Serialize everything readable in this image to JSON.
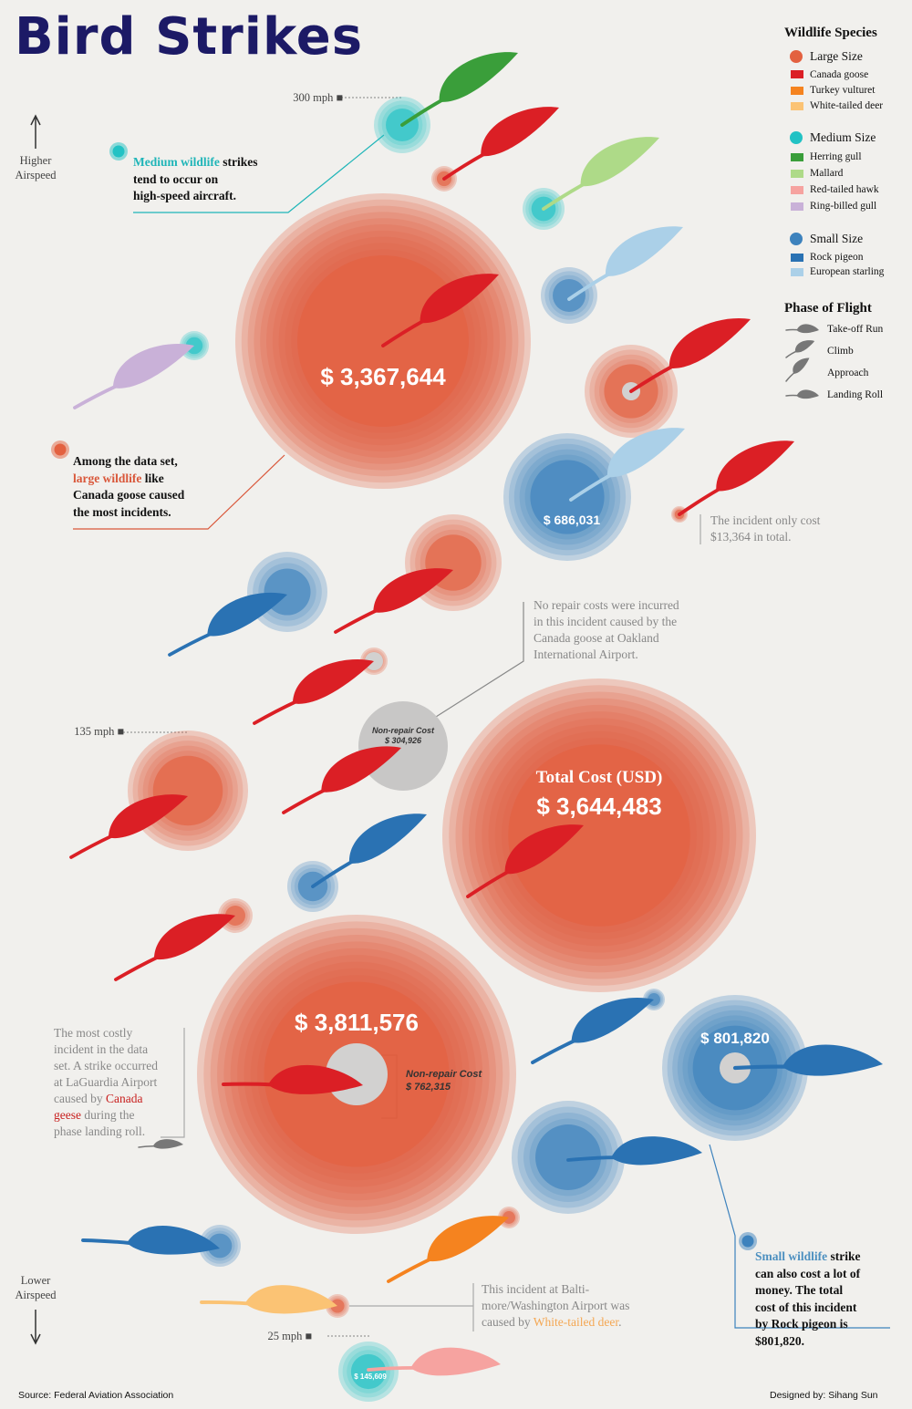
{
  "title": "Bird Strikes",
  "colors": {
    "background": "#f1f0ed",
    "title": "#1c1a66",
    "large_circle": "#e36140",
    "medium_circle": "#22c2c4",
    "small_circle": "#3d82bd",
    "non_repair": "#c8c7c6"
  },
  "legend": {
    "species_title": "Wildlife Species",
    "groups": [
      {
        "label": "Large Size",
        "icon": "large-size-circle",
        "color": "#e36140",
        "items": [
          {
            "label": "Canada goose",
            "color": "#db1f25"
          },
          {
            "label": "Turkey vulturet",
            "color": "#f5831f"
          },
          {
            "label": "White-tailed deer",
            "color": "#fbc374"
          }
        ]
      },
      {
        "label": "Medium Size",
        "icon": "medium-size-circle",
        "color": "#22c2c4",
        "items": [
          {
            "label": "Herring gull",
            "color": "#3a9e3a"
          },
          {
            "label": "Mallard",
            "color": "#aeda88"
          },
          {
            "label": "Red-tailed hawk",
            "color": "#f6a3a0"
          },
          {
            "label": "Ring-billed gull",
            "color": "#c9b1d8"
          }
        ]
      },
      {
        "label": "Small Size",
        "icon": "small-size-circle",
        "color": "#3d82bd",
        "items": [
          {
            "label": "Rock pigeon",
            "color": "#2a72b3"
          },
          {
            "label": "European starling",
            "color": "#abd0e8"
          }
        ]
      }
    ],
    "phase_title": "Phase of Flight",
    "phases": [
      {
        "label": "Take-off Run",
        "icon": "feather-take-off-icon"
      },
      {
        "label": "Climb",
        "icon": "feather-climb-icon"
      },
      {
        "label": "Approach",
        "icon": "feather-approach-icon"
      },
      {
        "label": "Landing Roll",
        "icon": "feather-landing-icon"
      }
    ]
  },
  "axis": {
    "higher": [
      "Higher",
      "Airspeed"
    ],
    "lower": [
      "Lower",
      "Airspeed"
    ],
    "ticks": [
      {
        "label": "300 mph ■",
        "speed": 300
      },
      {
        "label": "135 mph ■",
        "speed": 135
      },
      {
        "label": "25 mph ■",
        "speed": 25
      }
    ]
  },
  "annotations": {
    "medium": {
      "highlight": "Medium wildlife",
      "rest1": " strikes",
      "line2": "tend to occur on",
      "line3": "high-speed aircraft."
    },
    "large": {
      "line1": "Among the data set,",
      "highlight": "large wildlife",
      "rest2": " like",
      "line3": "Canada goose caused",
      "line4": "the most incidents."
    },
    "cheap": {
      "line1": "The incident only cost",
      "line2": "$13,364 in total."
    },
    "oakland": {
      "line1": "No repair costs were incurred",
      "line2": "in this incident caused by the",
      "line3": "Canada goose at Oakland",
      "line4": "International Airport."
    },
    "laguardia": {
      "line1": "The most costly",
      "line2": "incident in the data",
      "line3": "set. A strike occurred",
      "line4": "at LaGuardia Airport",
      "line5": "caused by",
      "highlight1": "Canada",
      "highlight2": "geese",
      "line6rest": " during the",
      "line7": "phase landing roll."
    },
    "baltimore": {
      "line1": "This incident at Balti-",
      "line2": "more/Washington Airport was",
      "line3": "caused by",
      "highlight": "White-tailed deer",
      "tail": "."
    },
    "small": {
      "highlight": "Small wildlife",
      "rest1": " strike",
      "line2": "can also cost a lot of",
      "line3": "money. The total",
      "line4": "cost of this incident",
      "line5": "by Rock pigeon is",
      "line6": "$801,820."
    }
  },
  "footer": {
    "source": "Source: Federal Aviation Association",
    "designer": "Designed by: Sihang Sun"
  },
  "chart_data": {
    "type": "scatter",
    "title": "Bird Strikes",
    "ylabel": "Airspeed",
    "y_ticks": [
      "300 mph",
      "135 mph",
      "25 mph"
    ],
    "size_measure": "Total Cost (USD)",
    "points": [
      {
        "species": "Herring gull",
        "size_class": "Medium Size",
        "speed": 300,
        "cost": 180000,
        "phase": "Climb"
      },
      {
        "species": "Canada goose",
        "size_class": "Large Size",
        "speed": 290,
        "cost": 30000,
        "phase": "Climb"
      },
      {
        "species": "Mallard",
        "size_class": "Medium Size",
        "speed": 270,
        "cost": 90000,
        "phase": "Climb"
      },
      {
        "species": "Canada goose",
        "size_class": "Large Size",
        "speed": 240,
        "cost": 3367644,
        "cost_label": "$ 3,367,644",
        "phase": "Approach"
      },
      {
        "species": "European starling",
        "size_class": "Small Size",
        "speed": 235,
        "cost": 110000,
        "phase": "Climb"
      },
      {
        "species": "Ring-billed gull",
        "size_class": "Medium Size",
        "speed": 220,
        "cost": 40000,
        "phase": "Approach"
      },
      {
        "species": "Canada goose",
        "size_class": "Large Size",
        "speed": 212,
        "cost": 280000,
        "non_repair_cost": 5000,
        "phase": "Climb"
      },
      {
        "species": "European starling",
        "size_class": "Small Size",
        "speed": 192,
        "cost": 686031,
        "cost_label": "$ 686,031",
        "phase": "Approach"
      },
      {
        "species": "Canada goose",
        "size_class": "Large Size",
        "speed": 190,
        "cost": 13364,
        "phase": "Climb"
      },
      {
        "species": "Canada goose",
        "size_class": "Large Size",
        "speed": 170,
        "cost": 300000,
        "phase": "Approach"
      },
      {
        "species": "Rock pigeon",
        "size_class": "Small Size",
        "speed": 168,
        "cost": 200000,
        "phase": "Approach"
      },
      {
        "species": "Canada goose",
        "size_class": "Large Size",
        "speed": 152,
        "cost": 25000,
        "non_repair_cost": 5000,
        "phase": "Approach"
      },
      {
        "species": "Canada goose",
        "size_class": "Large Size",
        "speed": 135,
        "cost": 350000,
        "phase": "Approach"
      },
      {
        "species": "Canada goose",
        "size_class": "Large Size",
        "speed": 135,
        "cost": 304926,
        "non_repair_cost": 304926,
        "non_repair_label": "$ 304,926",
        "phase": "Approach"
      },
      {
        "species": "Canada goose",
        "size_class": "Large Size",
        "speed": 120,
        "cost": 3644483,
        "cost_label": "$ 3,644,483",
        "phase": "Approach"
      },
      {
        "species": "Rock pigeon",
        "size_class": "Small Size",
        "speed": 112,
        "cost": 100000,
        "phase": "Approach"
      },
      {
        "species": "Canada goose",
        "size_class": "Large Size",
        "speed": 105,
        "cost": 40000,
        "phase": "Approach"
      },
      {
        "species": "Canada goose",
        "size_class": "Large Size",
        "speed": 80,
        "cost": 3811576,
        "cost_label": "$ 3,811,576",
        "non_repair_cost": 762315,
        "non_repair_label": "$ 762,315",
        "phase": "Landing Roll"
      },
      {
        "species": "Rock pigeon",
        "size_class": "Small Size",
        "speed": 82,
        "cost": 801820,
        "cost_label": "$ 801,820",
        "phase": "Landing Roll"
      },
      {
        "species": "Rock pigeon",
        "size_class": "Small Size",
        "speed": 95,
        "cost": 15000,
        "phase": "Approach"
      },
      {
        "species": "Rock pigeon",
        "size_class": "Small Size",
        "speed": 65,
        "cost": 400000,
        "phase": "Landing Roll"
      },
      {
        "species": "Turkey vulturet",
        "size_class": "Large Size",
        "speed": 45,
        "cost": 30000,
        "phase": "Approach"
      },
      {
        "species": "Rock pigeon",
        "size_class": "Small Size",
        "speed": 40,
        "cost": 90000,
        "phase": "Landing Roll"
      },
      {
        "species": "White-tailed deer",
        "size_class": "Large Size",
        "speed": 30,
        "cost": 25000,
        "phase": "Landing Roll"
      },
      {
        "species": "Red-tailed hawk",
        "size_class": "Medium Size",
        "speed": 25,
        "cost": 145609,
        "cost_label": "$ 145,609",
        "phase": "Landing Roll"
      }
    ],
    "center_label": "Total Cost (USD)",
    "non_repair_label": "Non-repair Cost"
  }
}
